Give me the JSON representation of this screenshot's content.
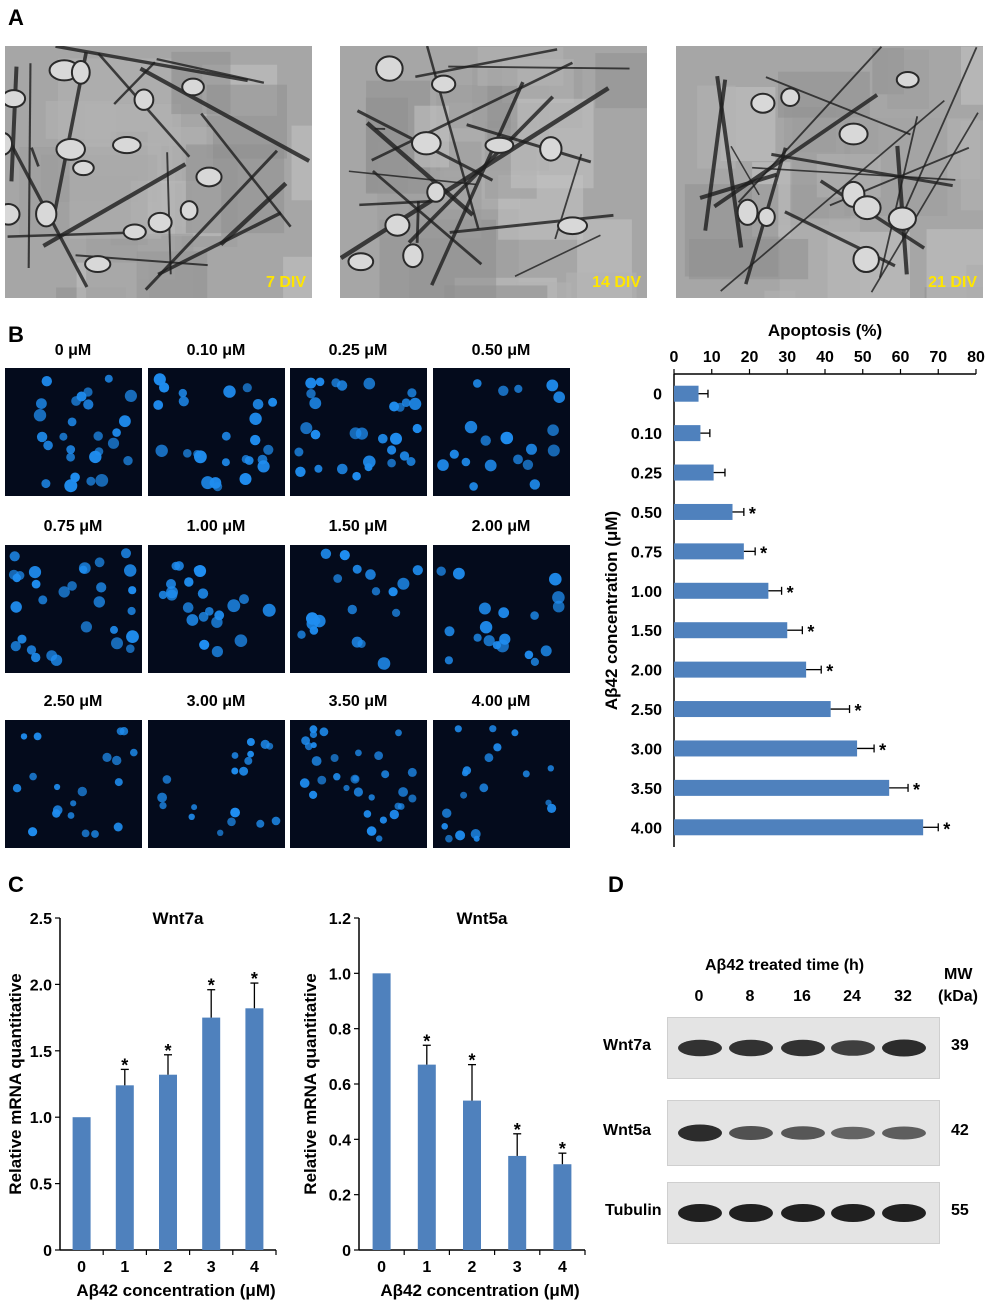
{
  "panels": {
    "A": "A",
    "B": "B",
    "C": "C",
    "D": "D"
  },
  "panel_a": {
    "images": [
      {
        "label": "7 DIV"
      },
      {
        "label": "14 DIV"
      },
      {
        "label": "21 DIV"
      }
    ]
  },
  "panel_b": {
    "images": [
      {
        "label": "0 μM"
      },
      {
        "label": "0.10 μM"
      },
      {
        "label": "0.25 μM"
      },
      {
        "label": "0.50 μM"
      },
      {
        "label": "0.75 μM"
      },
      {
        "label": "1.00 μM"
      },
      {
        "label": "1.50 μM"
      },
      {
        "label": "2.00 μM"
      },
      {
        "label": "2.50 μM"
      },
      {
        "label": "3.00 μM"
      },
      {
        "label": "3.50 μM"
      },
      {
        "label": "4.00 μM"
      }
    ]
  },
  "panel_d": {
    "title": "Aβ42 treated time (h)",
    "mw_header": "MW",
    "mw_unit": "(kDa)",
    "lanes": [
      "0",
      "8",
      "16",
      "24",
      "32"
    ],
    "blots": [
      {
        "name": "Wnt7a",
        "mw": "39",
        "intensity": [
          0.85,
          0.85,
          0.85,
          0.75,
          0.9
        ]
      },
      {
        "name": "Wnt5a",
        "mw": "42",
        "intensity": [
          0.9,
          0.6,
          0.55,
          0.45,
          0.5
        ]
      },
      {
        "name": "Tubulin",
        "mw": "55",
        "intensity": [
          1,
          1,
          1,
          1,
          1
        ]
      }
    ],
    "colors": {
      "band": "#151515",
      "background": "#e4e4e4"
    }
  },
  "chart_data": [
    {
      "id": "B-apoptosis",
      "type": "bar",
      "orientation": "horizontal",
      "title": "Apoptosis (%)",
      "ylabel": "Aβ42 concentration (μM)",
      "categories": [
        "0",
        "0.10",
        "0.25",
        "0.50",
        "0.75",
        "1.00",
        "1.50",
        "2.00",
        "2.50",
        "3.00",
        "3.50",
        "4.00"
      ],
      "values": [
        6.5,
        7,
        10.5,
        15.5,
        18.5,
        25,
        30,
        35,
        41.5,
        48.5,
        57,
        66
      ],
      "errors": [
        2.5,
        2.5,
        3,
        3,
        3,
        3.5,
        4,
        4,
        5,
        4.5,
        5,
        4
      ],
      "significant": [
        false,
        false,
        false,
        true,
        true,
        true,
        true,
        true,
        true,
        true,
        true,
        true
      ],
      "xlim": [
        0,
        80
      ],
      "xticks": [
        "0",
        "10",
        "20",
        "30",
        "40",
        "50",
        "60",
        "70",
        "80"
      ],
      "color": "#4f81bd"
    },
    {
      "id": "C-wnt7a",
      "type": "bar",
      "title": "Wnt7a",
      "ylabel": "Relative mRNA quantitative",
      "xlabel": "Aβ42 concentration (μM)",
      "categories": [
        "0",
        "1",
        "2",
        "3",
        "4"
      ],
      "values": [
        1.0,
        1.24,
        1.32,
        1.75,
        1.82
      ],
      "errors": [
        0,
        0.12,
        0.15,
        0.21,
        0.19
      ],
      "significant": [
        false,
        true,
        true,
        true,
        true
      ],
      "ylim": [
        0,
        2.5
      ],
      "yticks": [
        "0",
        "0.5",
        "1.0",
        "1.5",
        "2.0",
        "2.5"
      ],
      "color": "#4f81bd"
    },
    {
      "id": "C-wnt5a",
      "type": "bar",
      "title": "Wnt5a",
      "ylabel": "Relative mRNA quantitative",
      "xlabel": "Aβ42 concentration (μM)",
      "categories": [
        "0",
        "1",
        "2",
        "3",
        "4"
      ],
      "values": [
        1.0,
        0.67,
        0.54,
        0.34,
        0.31
      ],
      "errors": [
        0,
        0.07,
        0.13,
        0.08,
        0.04
      ],
      "significant": [
        false,
        true,
        true,
        true,
        true
      ],
      "ylim": [
        0,
        1.2
      ],
      "yticks": [
        "0",
        "0.2",
        "0.4",
        "0.6",
        "0.8",
        "1.0",
        "1.2"
      ],
      "color": "#4f81bd"
    }
  ]
}
